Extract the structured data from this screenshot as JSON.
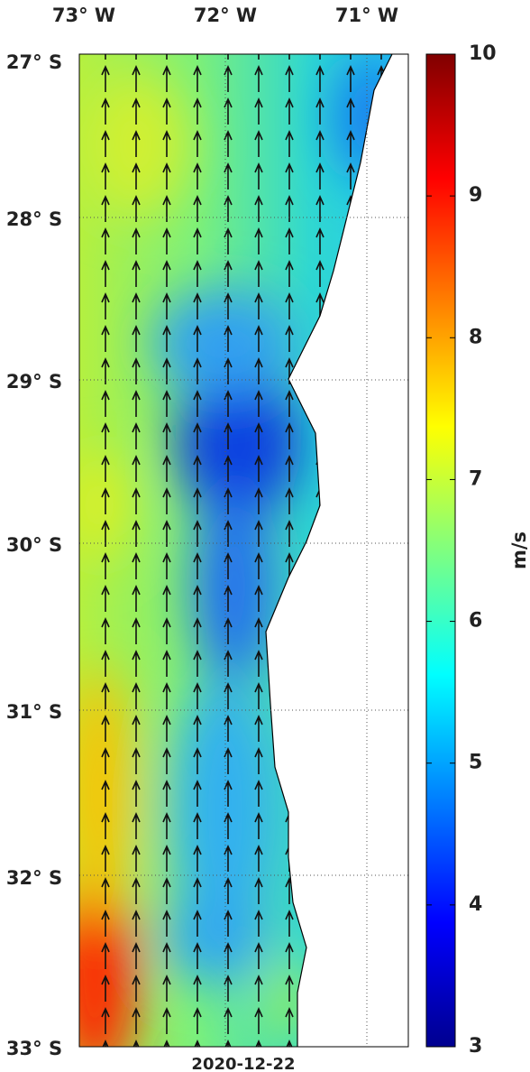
{
  "map": {
    "lon_labels": [
      "73° W",
      "72° W",
      "71° W"
    ],
    "lat_labels": [
      "27° S",
      "28° S",
      "29° S",
      "30° S",
      "31° S",
      "32° S",
      "33° S"
    ],
    "date": "2020-12-22"
  },
  "colorbar": {
    "label": "m/s",
    "lim": [
      3,
      10
    ],
    "ticks": [
      3,
      4,
      5,
      6,
      7,
      8,
      9,
      10
    ]
  }
}
